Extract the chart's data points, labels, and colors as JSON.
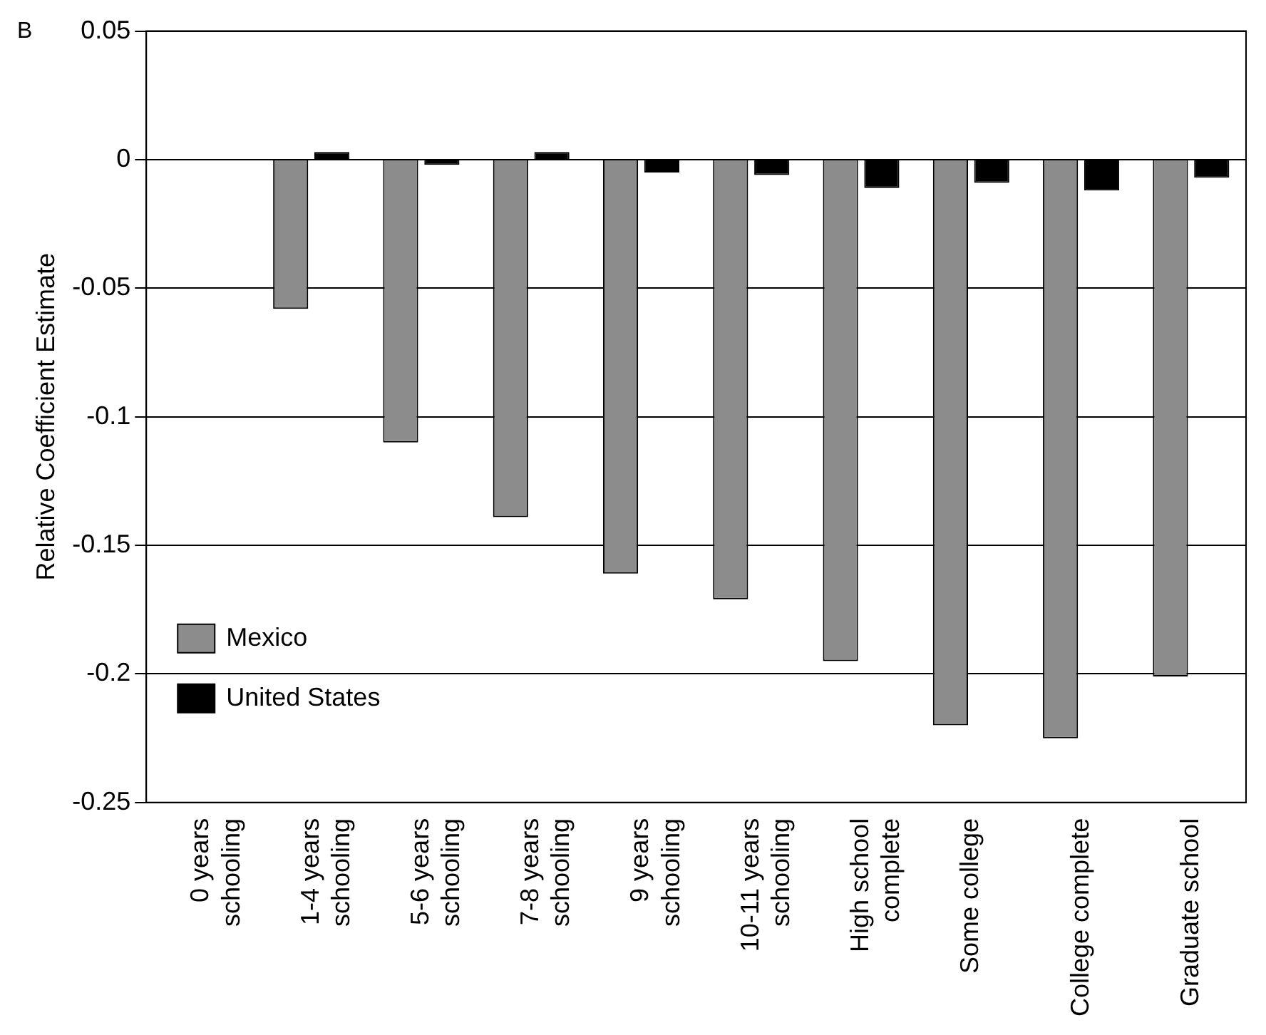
{
  "chart_data": {
    "type": "bar",
    "ylabel": "Relative Coefficient Estimate",
    "annotations": [
      "B"
    ],
    "categories": [
      "0 years\nschooling",
      "1-4 years\nschooling",
      "5-6 years\nschooling",
      "7-8 years\nschooling",
      "9 years\nschooling",
      "10-11 years\nschooling",
      "High school\ncomplete",
      "Some college",
      "College complete",
      "Graduate school"
    ],
    "series": [
      {
        "name": "Mexico",
        "color": "#8c8c8c",
        "values": [
          0,
          -0.058,
          -0.11,
          -0.139,
          -0.161,
          -0.171,
          -0.195,
          -0.22,
          -0.225,
          -0.201
        ]
      },
      {
        "name": "United States",
        "color": "#000000",
        "values": [
          0,
          0.003,
          -0.002,
          0.003,
          -0.005,
          -0.006,
          -0.011,
          -0.009,
          -0.012,
          -0.007
        ]
      }
    ],
    "ylim": [
      -0.25,
      0.05
    ],
    "yticks": [
      0.05,
      0,
      -0.05,
      -0.1,
      -0.15,
      -0.2,
      -0.25
    ],
    "grid": "y",
    "legend": "bottom left"
  }
}
